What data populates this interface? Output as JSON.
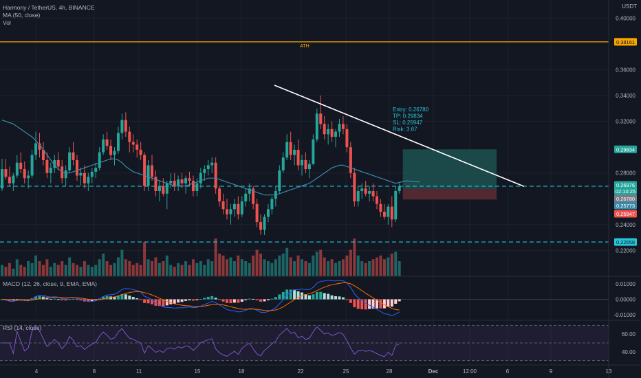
{
  "symbol": {
    "title": "Harmony / TetherUS, 4h, BINANCE",
    "ma_label": "MA (50, close)",
    "vol_label": "Vol"
  },
  "currency": "USDT",
  "macd_label": "MACD (12, 26, close, 9, EMA, EMA)",
  "rsi_label": "RSI (14, close)",
  "colors": {
    "background": "#131722",
    "up": "#26a69a",
    "down": "#ef5350",
    "ma": "#3b87a8",
    "ath_line": "#f7a600",
    "dashed_level": "#26c6da",
    "trendline": "#ffffff",
    "tp_zone": "#1f5a57",
    "sl_zone": "#5a2b33",
    "macd_line": "#2962ff",
    "signal_line": "#ff6d00",
    "rsi_line": "#7e57c2"
  },
  "trade": {
    "entry_text": "Entry: 0.26780",
    "tp_text": "TP: 0.29834",
    "sl_text": "SL: 0.25947",
    "risk_text": "Risk: 3.67"
  },
  "ath_label": "ATH",
  "price_axis": {
    "ticks": [
      "0.40000",
      "0.36000",
      "0.34000",
      "0.32000",
      "0.28000",
      "0.24000",
      "0.22000"
    ],
    "badges": [
      {
        "text": "0.38161",
        "kind": "ath"
      },
      {
        "text": "0.29834",
        "kind": "tp"
      },
      {
        "text": "0.26976",
        "kind": "last"
      },
      {
        "text": "02:10:25",
        "kind": "countdown"
      },
      {
        "text": "0.26780",
        "kind": "entry"
      },
      {
        "text": "0.25773",
        "kind": "ma"
      },
      {
        "text": "0.25947",
        "kind": "sl"
      },
      {
        "text": "0.22658",
        "kind": "level"
      }
    ]
  },
  "macd_axis": {
    "ticks": [
      "0.01000",
      "0.00000",
      "-0.01000"
    ]
  },
  "rsi_axis": {
    "ticks": [
      "60.00",
      "40.00"
    ]
  },
  "time_axis": {
    "ticks": [
      "4",
      "8",
      "11",
      "15",
      "18",
      "22",
      "25",
      "28",
      "Dec",
      "12:00",
      "6",
      "9",
      "13"
    ]
  },
  "chart_data": {
    "type": "candlestick",
    "title": "Harmony / TetherUS, 4h, BINANCE",
    "y_range": [
      0.2,
      0.414
    ],
    "ath": 0.38161,
    "levels": {
      "entry": 0.2678,
      "tp": 0.29834,
      "sl": 0.25947,
      "support": 0.22658,
      "last": 0.26976,
      "ma_last": 0.25773
    },
    "trendline": {
      "start_price": 0.348,
      "end_price": 0.2696
    },
    "ohlc": [
      [
        0.268,
        0.291,
        0.266,
        0.283
      ],
      [
        0.283,
        0.291,
        0.275,
        0.277
      ],
      [
        0.277,
        0.285,
        0.27,
        0.272
      ],
      [
        0.272,
        0.28,
        0.266,
        0.278
      ],
      [
        0.278,
        0.294,
        0.276,
        0.288
      ],
      [
        0.288,
        0.296,
        0.28,
        0.283
      ],
      [
        0.283,
        0.289,
        0.272,
        0.276
      ],
      [
        0.276,
        0.282,
        0.268,
        0.278
      ],
      [
        0.278,
        0.298,
        0.276,
        0.294
      ],
      [
        0.294,
        0.312,
        0.29,
        0.303
      ],
      [
        0.303,
        0.311,
        0.292,
        0.298
      ],
      [
        0.298,
        0.304,
        0.286,
        0.29
      ],
      [
        0.29,
        0.296,
        0.276,
        0.28
      ],
      [
        0.28,
        0.288,
        0.272,
        0.284
      ],
      [
        0.284,
        0.294,
        0.28,
        0.29
      ],
      [
        0.29,
        0.296,
        0.282,
        0.285
      ],
      [
        0.285,
        0.29,
        0.272,
        0.276
      ],
      [
        0.276,
        0.286,
        0.27,
        0.282
      ],
      [
        0.282,
        0.3,
        0.28,
        0.296
      ],
      [
        0.296,
        0.304,
        0.286,
        0.29
      ],
      [
        0.29,
        0.294,
        0.274,
        0.278
      ],
      [
        0.278,
        0.284,
        0.27,
        0.28
      ],
      [
        0.28,
        0.286,
        0.268,
        0.272
      ],
      [
        0.272,
        0.28,
        0.266,
        0.277
      ],
      [
        0.277,
        0.284,
        0.272,
        0.281
      ],
      [
        0.281,
        0.288,
        0.276,
        0.284
      ],
      [
        0.284,
        0.3,
        0.282,
        0.296
      ],
      [
        0.296,
        0.31,
        0.294,
        0.306
      ],
      [
        0.306,
        0.312,
        0.298,
        0.301
      ],
      [
        0.301,
        0.306,
        0.29,
        0.294
      ],
      [
        0.294,
        0.3,
        0.286,
        0.297
      ],
      [
        0.297,
        0.316,
        0.295,
        0.311
      ],
      [
        0.311,
        0.326,
        0.306,
        0.321
      ],
      [
        0.321,
        0.327,
        0.308,
        0.312
      ],
      [
        0.312,
        0.316,
        0.296,
        0.304
      ],
      [
        0.304,
        0.31,
        0.296,
        0.302
      ],
      [
        0.302,
        0.306,
        0.292,
        0.298
      ],
      [
        0.298,
        0.304,
        0.29,
        0.294
      ],
      [
        0.294,
        0.296,
        0.266,
        0.27
      ],
      [
        0.27,
        0.29,
        0.266,
        0.286
      ],
      [
        0.286,
        0.294,
        0.274,
        0.277
      ],
      [
        0.277,
        0.282,
        0.262,
        0.266
      ],
      [
        0.266,
        0.274,
        0.258,
        0.27
      ],
      [
        0.27,
        0.276,
        0.262,
        0.264
      ],
      [
        0.264,
        0.274,
        0.252,
        0.272
      ],
      [
        0.272,
        0.28,
        0.268,
        0.274
      ],
      [
        0.274,
        0.28,
        0.266,
        0.27
      ],
      [
        0.27,
        0.278,
        0.266,
        0.275
      ],
      [
        0.275,
        0.28,
        0.268,
        0.272
      ],
      [
        0.272,
        0.278,
        0.264,
        0.276
      ],
      [
        0.276,
        0.281,
        0.27,
        0.274
      ],
      [
        0.274,
        0.278,
        0.262,
        0.266
      ],
      [
        0.266,
        0.276,
        0.262,
        0.272
      ],
      [
        0.272,
        0.284,
        0.268,
        0.28
      ],
      [
        0.28,
        0.286,
        0.274,
        0.283
      ],
      [
        0.283,
        0.29,
        0.278,
        0.286
      ],
      [
        0.286,
        0.292,
        0.28,
        0.288
      ],
      [
        0.288,
        0.292,
        0.264,
        0.268
      ],
      [
        0.268,
        0.27,
        0.254,
        0.258
      ],
      [
        0.258,
        0.264,
        0.248,
        0.252
      ],
      [
        0.252,
        0.26,
        0.244,
        0.248
      ],
      [
        0.248,
        0.256,
        0.24,
        0.252
      ],
      [
        0.252,
        0.26,
        0.246,
        0.256
      ],
      [
        0.256,
        0.262,
        0.244,
        0.248
      ],
      [
        0.248,
        0.262,
        0.246,
        0.258
      ],
      [
        0.258,
        0.268,
        0.254,
        0.264
      ],
      [
        0.264,
        0.272,
        0.258,
        0.268
      ],
      [
        0.268,
        0.27,
        0.252,
        0.256
      ],
      [
        0.256,
        0.26,
        0.238,
        0.242
      ],
      [
        0.242,
        0.248,
        0.232,
        0.236
      ],
      [
        0.236,
        0.248,
        0.232,
        0.246
      ],
      [
        0.246,
        0.256,
        0.242,
        0.252
      ],
      [
        0.252,
        0.262,
        0.248,
        0.26
      ],
      [
        0.26,
        0.27,
        0.254,
        0.266
      ],
      [
        0.266,
        0.286,
        0.264,
        0.282
      ],
      [
        0.282,
        0.296,
        0.28,
        0.292
      ],
      [
        0.292,
        0.31,
        0.29,
        0.304
      ],
      [
        0.304,
        0.312,
        0.29,
        0.294
      ],
      [
        0.294,
        0.302,
        0.286,
        0.298
      ],
      [
        0.298,
        0.306,
        0.282,
        0.286
      ],
      [
        0.286,
        0.294,
        0.278,
        0.29
      ],
      [
        0.29,
        0.296,
        0.28,
        0.283
      ],
      [
        0.283,
        0.29,
        0.276,
        0.287
      ],
      [
        0.287,
        0.31,
        0.286,
        0.306
      ],
      [
        0.306,
        0.33,
        0.304,
        0.326
      ],
      [
        0.326,
        0.34,
        0.314,
        0.318
      ],
      [
        0.318,
        0.324,
        0.306,
        0.31
      ],
      [
        0.31,
        0.318,
        0.302,
        0.314
      ],
      [
        0.314,
        0.32,
        0.304,
        0.308
      ],
      [
        0.308,
        0.314,
        0.3,
        0.312
      ],
      [
        0.312,
        0.322,
        0.308,
        0.318
      ],
      [
        0.318,
        0.324,
        0.31,
        0.314
      ],
      [
        0.314,
        0.318,
        0.296,
        0.3
      ],
      [
        0.3,
        0.304,
        0.276,
        0.28
      ],
      [
        0.28,
        0.284,
        0.254,
        0.258
      ],
      [
        0.258,
        0.27,
        0.254,
        0.266
      ],
      [
        0.266,
        0.272,
        0.26,
        0.268
      ],
      [
        0.268,
        0.274,
        0.262,
        0.264
      ],
      [
        0.264,
        0.27,
        0.258,
        0.266
      ],
      [
        0.266,
        0.272,
        0.258,
        0.262
      ],
      [
        0.262,
        0.266,
        0.252,
        0.256
      ],
      [
        0.256,
        0.26,
        0.246,
        0.25
      ],
      [
        0.25,
        0.256,
        0.244,
        0.246
      ],
      [
        0.246,
        0.256,
        0.24,
        0.254
      ],
      [
        0.254,
        0.262,
        0.238,
        0.244
      ],
      [
        0.244,
        0.27,
        0.242,
        0.266
      ],
      [
        0.266,
        0.272,
        0.264,
        0.2698
      ]
    ],
    "volume": [
      0.3,
      0.25,
      0.35,
      0.2,
      0.45,
      0.3,
      0.25,
      0.4,
      0.35,
      0.55,
      0.4,
      0.3,
      0.45,
      0.25,
      0.35,
      0.3,
      0.4,
      0.3,
      0.5,
      0.35,
      0.3,
      0.25,
      0.4,
      0.3,
      0.25,
      0.3,
      0.45,
      0.6,
      0.4,
      0.3,
      0.35,
      0.5,
      0.7,
      0.45,
      0.4,
      0.3,
      0.35,
      0.3,
      0.9,
      0.45,
      0.4,
      0.5,
      0.35,
      0.4,
      0.55,
      0.3,
      0.25,
      0.35,
      0.3,
      0.4,
      0.3,
      0.45,
      0.35,
      0.4,
      0.3,
      0.45,
      0.4,
      1.0,
      0.6,
      0.55,
      0.45,
      0.5,
      0.4,
      0.55,
      0.45,
      0.4,
      0.35,
      0.55,
      0.7,
      0.6,
      0.45,
      0.4,
      0.35,
      0.45,
      0.55,
      0.6,
      0.75,
      0.5,
      0.4,
      0.55,
      0.45,
      0.4,
      0.35,
      0.55,
      0.65,
      0.7,
      0.5,
      0.4,
      0.45,
      0.35,
      0.4,
      0.45,
      0.55,
      0.7,
      1.0,
      0.55,
      0.4,
      0.35,
      0.4,
      0.45,
      0.5,
      0.55,
      0.45,
      0.5,
      0.6,
      0.65,
      0.4
    ],
    "ma50": [
      0.321,
      0.32,
      0.319,
      0.318,
      0.316,
      0.314,
      0.312,
      0.31,
      0.308,
      0.305,
      0.302,
      0.298,
      0.294,
      0.29,
      0.286,
      0.283,
      0.281,
      0.28,
      0.28,
      0.281,
      0.282,
      0.283,
      0.284,
      0.285,
      0.286,
      0.287,
      0.288,
      0.289,
      0.29,
      0.291,
      0.291,
      0.29,
      0.288,
      0.285,
      0.283,
      0.281,
      0.28,
      0.279,
      0.278,
      0.277,
      0.276,
      0.275,
      0.274,
      0.273,
      0.272,
      0.271,
      0.27,
      0.27,
      0.27,
      0.27,
      0.271,
      0.272,
      0.273,
      0.274,
      0.275,
      0.276,
      0.276,
      0.276,
      0.275,
      0.274,
      0.273,
      0.272,
      0.271,
      0.27,
      0.269,
      0.268,
      0.267,
      0.266,
      0.265,
      0.264,
      0.263,
      0.263,
      0.263,
      0.263,
      0.264,
      0.265,
      0.266,
      0.267,
      0.268,
      0.269,
      0.27,
      0.271,
      0.272,
      0.274,
      0.276,
      0.278,
      0.28,
      0.282,
      0.284,
      0.285,
      0.286,
      0.286,
      0.285,
      0.284,
      0.283,
      0.282,
      0.281,
      0.28,
      0.279,
      0.278,
      0.277,
      0.276,
      0.275,
      0.274,
      0.273,
      0.272,
      0.258
    ],
    "macd_range": [
      -0.014,
      0.014
    ],
    "rsi_range": [
      25,
      75
    ],
    "rsi_levels": [
      70,
      50,
      30
    ]
  }
}
